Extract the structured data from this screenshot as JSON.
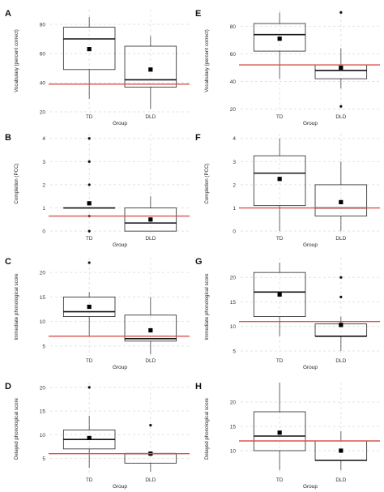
{
  "colors": {
    "reference_line": "#d9534f",
    "box_stroke": "#222222",
    "grid": "#e3e3e3",
    "mean_marker": "#000000"
  },
  "chart_data": [
    {
      "id": "A",
      "panel_label": "A",
      "type": "boxplot",
      "xlabel": "Group",
      "ylabel": "Vocabulary (percent correct)",
      "categories": [
        "TD",
        "DLD"
      ],
      "ylim": [
        20,
        90
      ],
      "yticks": [
        20,
        40,
        60,
        80
      ],
      "reference_line": 39,
      "boxes": [
        {
          "group": "TD",
          "whisker_low": 29,
          "q1": 49,
          "median": 70,
          "q3": 78,
          "whisker_high": 85,
          "mean": 63,
          "outliers": []
        },
        {
          "group": "DLD",
          "whisker_low": 22,
          "q1": 37,
          "median": 42,
          "q3": 65,
          "whisker_high": 72,
          "mean": 49,
          "outliers": []
        }
      ]
    },
    {
      "id": "B",
      "panel_label": "B",
      "type": "boxplot",
      "xlabel": "Group",
      "ylabel": "Completion (PCC)",
      "categories": [
        "TD",
        "DLD"
      ],
      "ylim": [
        -0.1,
        4.2
      ],
      "yticks": [
        0,
        1,
        2,
        3,
        4
      ],
      "reference_line": 0.65,
      "boxes": [
        {
          "group": "TD",
          "whisker_low": 1,
          "q1": 1,
          "median": 1,
          "q3": 1,
          "whisker_high": 1,
          "mean": 1.2,
          "outliers": [
            0,
            0.65,
            2,
            3,
            4
          ]
        },
        {
          "group": "DLD",
          "whisker_low": 0,
          "q1": 0,
          "median": 0.35,
          "q3": 1,
          "whisker_high": 1.5,
          "mean": 0.5,
          "outliers": []
        }
      ]
    },
    {
      "id": "C",
      "panel_label": "C",
      "type": "boxplot",
      "xlabel": "Group",
      "ylabel": "Immediate phonological score",
      "categories": [
        "TD",
        "DLD"
      ],
      "ylim": [
        3,
        23
      ],
      "yticks": [
        5,
        10,
        15,
        20
      ],
      "reference_line": 7,
      "boxes": [
        {
          "group": "TD",
          "whisker_low": 7,
          "q1": 11,
          "median": 12,
          "q3": 15,
          "whisker_high": 16,
          "mean": 13,
          "outliers": [
            22
          ]
        },
        {
          "group": "DLD",
          "whisker_low": 3.3,
          "q1": 6,
          "median": 6.5,
          "q3": 11.3,
          "whisker_high": 15,
          "mean": 8.2,
          "outliers": []
        }
      ]
    },
    {
      "id": "D",
      "panel_label": "D",
      "type": "boxplot",
      "xlabel": "Group",
      "ylabel": "Delayed phonological score",
      "categories": [
        "TD",
        "DLD"
      ],
      "ylim": [
        1.5,
        21
      ],
      "yticks": [
        5,
        10,
        15,
        20
      ],
      "reference_line": 6,
      "boxes": [
        {
          "group": "TD",
          "whisker_low": 3,
          "q1": 7,
          "median": 9,
          "q3": 11,
          "whisker_high": 14,
          "mean": 9.3,
          "outliers": [
            20
          ]
        },
        {
          "group": "DLD",
          "whisker_low": 2.2,
          "q1": 4,
          "median": 6,
          "q3": 6,
          "whisker_high": 6,
          "mean": 6,
          "outliers": [
            12
          ]
        }
      ]
    },
    {
      "id": "E",
      "panel_label": "E",
      "type": "boxplot",
      "xlabel": "Group",
      "ylabel": "Vocabulary (percent correct)",
      "categories": [
        "TD",
        "DLD"
      ],
      "ylim": [
        18,
        92
      ],
      "yticks": [
        20,
        40,
        60,
        80
      ],
      "reference_line": 52,
      "boxes": [
        {
          "group": "TD",
          "whisker_low": 42,
          "q1": 62,
          "median": 74,
          "q3": 82,
          "whisker_high": 90,
          "mean": 71,
          "outliers": []
        },
        {
          "group": "DLD",
          "whisker_low": 35,
          "q1": 42,
          "median": 48,
          "q3": 52,
          "whisker_high": 64,
          "mean": 50,
          "outliers": [
            90,
            22
          ]
        }
      ]
    },
    {
      "id": "F",
      "panel_label": "F",
      "type": "boxplot",
      "xlabel": "Group",
      "ylabel": "Completion (PCC)",
      "categories": [
        "TD",
        "DLD"
      ],
      "ylim": [
        -0.1,
        4.2
      ],
      "yticks": [
        0,
        1,
        2,
        3,
        4
      ],
      "reference_line": 1,
      "boxes": [
        {
          "group": "TD",
          "whisker_low": 0,
          "q1": 1.1,
          "median": 2.5,
          "q3": 3.25,
          "whisker_high": 4,
          "mean": 2.25,
          "outliers": []
        },
        {
          "group": "DLD",
          "whisker_low": 0,
          "q1": 0.65,
          "median": 1,
          "q3": 2,
          "whisker_high": 3,
          "mean": 1.25,
          "outliers": []
        }
      ]
    },
    {
      "id": "G",
      "panel_label": "G",
      "type": "boxplot",
      "xlabel": "Group",
      "ylabel": "Immediate phonological score",
      "categories": [
        "TD",
        "DLD"
      ],
      "ylim": [
        4,
        24
      ],
      "yticks": [
        5,
        10,
        15,
        20
      ],
      "reference_line": 11,
      "boxes": [
        {
          "group": "TD",
          "whisker_low": 8,
          "q1": 12,
          "median": 17,
          "q3": 21,
          "whisker_high": 23,
          "mean": 16.5,
          "outliers": []
        },
        {
          "group": "DLD",
          "whisker_low": 5,
          "q1": 8,
          "median": 8,
          "q3": 10.5,
          "whisker_high": 12,
          "mean": 10.3,
          "outliers": [
            16,
            20
          ]
        }
      ]
    },
    {
      "id": "H",
      "panel_label": "H",
      "type": "boxplot",
      "xlabel": "Group",
      "ylabel": "Delayed phonological score",
      "categories": [
        "TD",
        "DLD"
      ],
      "ylim": [
        5,
        24
      ],
      "yticks": [
        10,
        15,
        20
      ],
      "reference_line": 12,
      "boxes": [
        {
          "group": "TD",
          "whisker_low": 6,
          "q1": 10,
          "median": 13,
          "q3": 18,
          "whisker_high": 24,
          "mean": 13.7,
          "outliers": []
        },
        {
          "group": "DLD",
          "whisker_low": 6,
          "q1": 8,
          "median": 8,
          "q3": 12,
          "whisker_high": 14,
          "mean": 10,
          "outliers": []
        }
      ]
    }
  ]
}
